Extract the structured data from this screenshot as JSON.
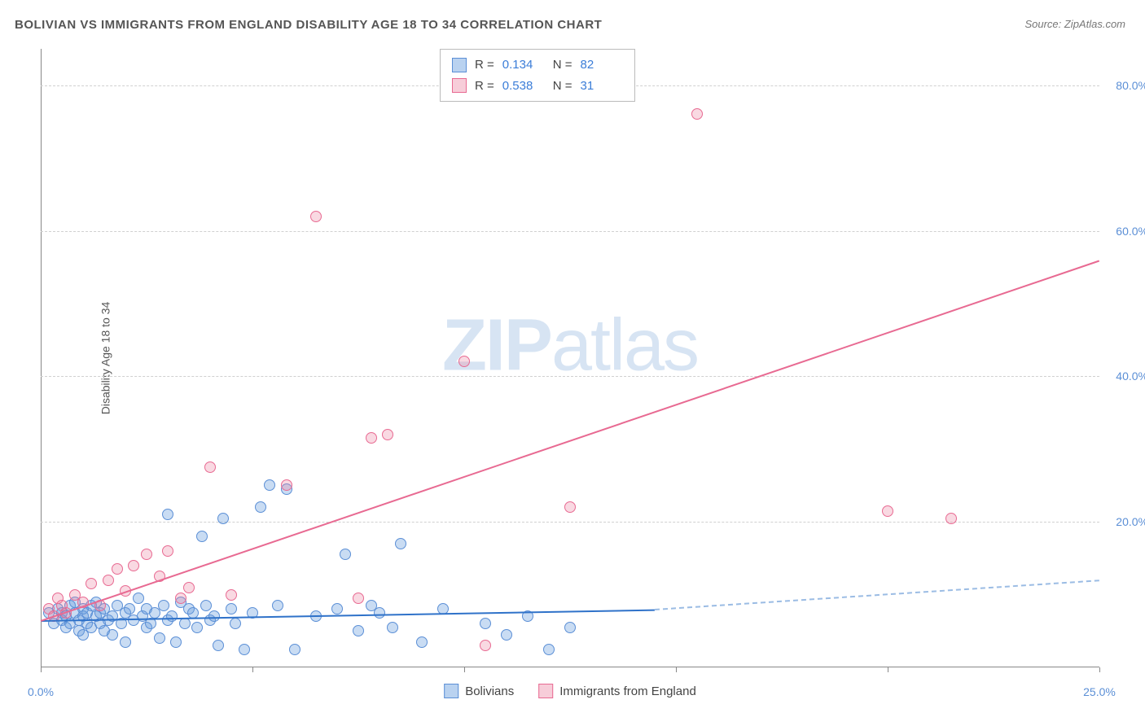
{
  "title": "BOLIVIAN VS IMMIGRANTS FROM ENGLAND DISABILITY AGE 18 TO 34 CORRELATION CHART",
  "source": "Source: ZipAtlas.com",
  "y_axis_label": "Disability Age 18 to 34",
  "watermark_bold": "ZIP",
  "watermark_rest": "atlas",
  "chart": {
    "type": "scatter",
    "xlim": [
      0,
      25
    ],
    "ylim": [
      0,
      85
    ],
    "x_ticks": [
      0,
      5,
      10,
      15,
      20,
      25
    ],
    "x_tick_labels": {
      "0": "0.0%",
      "25": "25.0%"
    },
    "y_ticks": [
      20,
      40,
      60,
      80
    ],
    "y_tick_labels": [
      "20.0%",
      "40.0%",
      "60.0%",
      "80.0%"
    ],
    "grid_color": "#d0d0d0",
    "background_color": "#ffffff",
    "marker_size": 14,
    "series": [
      {
        "name": "Bolivians",
        "color_fill": "rgba(99,156,221,0.35)",
        "color_stroke": "#5b8fd6",
        "r": 0.134,
        "n": 82,
        "trend": {
          "x0": 0,
          "y0": 6.5,
          "x1": 14.5,
          "y1": 8.0,
          "dash_to_x": 25,
          "dash_to_y": 12.0,
          "color": "#2f72c9"
        },
        "points": [
          [
            0.2,
            7.5
          ],
          [
            0.3,
            6.0
          ],
          [
            0.4,
            8.0
          ],
          [
            0.5,
            6.5
          ],
          [
            0.5,
            7.5
          ],
          [
            0.6,
            5.5
          ],
          [
            0.6,
            7.0
          ],
          [
            0.7,
            8.5
          ],
          [
            0.7,
            6.0
          ],
          [
            0.8,
            7.5
          ],
          [
            0.8,
            9.0
          ],
          [
            0.9,
            5.0
          ],
          [
            0.9,
            6.5
          ],
          [
            1.0,
            7.0
          ],
          [
            1.0,
            8.0
          ],
          [
            1.0,
            4.5
          ],
          [
            1.1,
            6.0
          ],
          [
            1.1,
            7.5
          ],
          [
            1.2,
            8.5
          ],
          [
            1.2,
            5.5
          ],
          [
            1.3,
            7.0
          ],
          [
            1.3,
            9.0
          ],
          [
            1.4,
            6.0
          ],
          [
            1.4,
            7.5
          ],
          [
            1.5,
            5.0
          ],
          [
            1.5,
            8.0
          ],
          [
            1.6,
            6.5
          ],
          [
            1.7,
            7.0
          ],
          [
            1.7,
            4.5
          ],
          [
            1.8,
            8.5
          ],
          [
            1.9,
            6.0
          ],
          [
            2.0,
            7.5
          ],
          [
            2.0,
            3.5
          ],
          [
            2.1,
            8.0
          ],
          [
            2.2,
            6.5
          ],
          [
            2.3,
            9.5
          ],
          [
            2.4,
            7.0
          ],
          [
            2.5,
            5.5
          ],
          [
            2.5,
            8.0
          ],
          [
            2.6,
            6.0
          ],
          [
            2.7,
            7.5
          ],
          [
            2.8,
            4.0
          ],
          [
            2.9,
            8.5
          ],
          [
            3.0,
            6.5
          ],
          [
            3.0,
            21.0
          ],
          [
            3.1,
            7.0
          ],
          [
            3.2,
            3.5
          ],
          [
            3.3,
            9.0
          ],
          [
            3.4,
            6.0
          ],
          [
            3.5,
            8.0
          ],
          [
            3.6,
            7.5
          ],
          [
            3.7,
            5.5
          ],
          [
            3.8,
            18.0
          ],
          [
            3.9,
            8.5
          ],
          [
            4.0,
            6.5
          ],
          [
            4.1,
            7.0
          ],
          [
            4.2,
            3.0
          ],
          [
            4.3,
            20.5
          ],
          [
            4.5,
            8.0
          ],
          [
            4.6,
            6.0
          ],
          [
            4.8,
            2.5
          ],
          [
            5.0,
            7.5
          ],
          [
            5.2,
            22.0
          ],
          [
            5.4,
            25.0
          ],
          [
            5.6,
            8.5
          ],
          [
            5.8,
            24.5
          ],
          [
            6.0,
            2.5
          ],
          [
            6.5,
            7.0
          ],
          [
            7.0,
            8.0
          ],
          [
            7.2,
            15.5
          ],
          [
            7.5,
            5.0
          ],
          [
            7.8,
            8.5
          ],
          [
            8.0,
            7.5
          ],
          [
            8.3,
            5.5
          ],
          [
            8.5,
            17.0
          ],
          [
            9.0,
            3.5
          ],
          [
            9.5,
            8.0
          ],
          [
            10.5,
            6.0
          ],
          [
            11.0,
            4.5
          ],
          [
            11.5,
            7.0
          ],
          [
            12.0,
            2.5
          ],
          [
            12.5,
            5.5
          ]
        ]
      },
      {
        "name": "Immigrants from England",
        "color_fill": "rgba(235,130,160,0.30)",
        "color_stroke": "#e86a92",
        "r": 0.538,
        "n": 31,
        "trend": {
          "x0": 0,
          "y0": 6.5,
          "x1": 25,
          "y1": 56.0,
          "color": "#e86a92"
        },
        "points": [
          [
            0.2,
            8.0
          ],
          [
            0.3,
            7.0
          ],
          [
            0.4,
            9.5
          ],
          [
            0.5,
            8.5
          ],
          [
            0.6,
            7.5
          ],
          [
            0.8,
            10.0
          ],
          [
            1.0,
            9.0
          ],
          [
            1.2,
            11.5
          ],
          [
            1.4,
            8.5
          ],
          [
            1.6,
            12.0
          ],
          [
            1.8,
            13.5
          ],
          [
            2.0,
            10.5
          ],
          [
            2.2,
            14.0
          ],
          [
            2.5,
            15.5
          ],
          [
            2.8,
            12.5
          ],
          [
            3.0,
            16.0
          ],
          [
            3.3,
            9.5
          ],
          [
            3.5,
            11.0
          ],
          [
            4.0,
            27.5
          ],
          [
            4.5,
            10.0
          ],
          [
            5.8,
            25.0
          ],
          [
            6.5,
            62.0
          ],
          [
            7.5,
            9.5
          ],
          [
            7.8,
            31.5
          ],
          [
            8.2,
            32.0
          ],
          [
            10.0,
            42.0
          ],
          [
            10.5,
            3.0
          ],
          [
            12.5,
            22.0
          ],
          [
            15.5,
            76.0
          ],
          [
            20.0,
            21.5
          ],
          [
            21.5,
            20.5
          ]
        ]
      }
    ],
    "legend": [
      "Bolivians",
      "Immigrants from England"
    ],
    "stats_labels": {
      "r": "R  =",
      "n": "N  ="
    }
  }
}
